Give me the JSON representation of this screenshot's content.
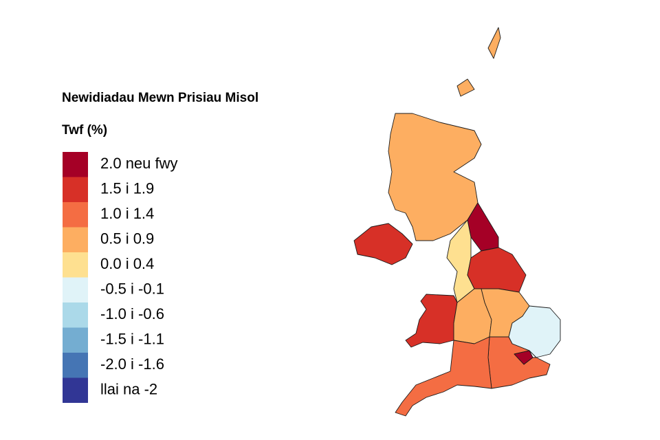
{
  "title": "Newidiadau Mewn Prisiau Misol",
  "legend": {
    "title": "Twf (%)",
    "items": [
      {
        "label": "2.0 neu fwy",
        "color": "#a50026"
      },
      {
        "label": "1.5 i 1.9",
        "color": "#d73027"
      },
      {
        "label": "1.0 i 1.4",
        "color": "#f46d43"
      },
      {
        "label": "0.5 i 0.9",
        "color": "#fdae61"
      },
      {
        "label": "0.0 i 0.4",
        "color": "#fee090"
      },
      {
        "label": "-0.5 i -0.1",
        "color": "#e0f3f8"
      },
      {
        "label": "-1.0 i -0.6",
        "color": "#abd9e9"
      },
      {
        "label": "-1.5 i -1.1",
        "color": "#74add1"
      },
      {
        "label": "-2.0 i -1.6",
        "color": "#4575b4"
      },
      {
        "label": "llai na -2",
        "color": "#313695"
      }
    ]
  }
}
